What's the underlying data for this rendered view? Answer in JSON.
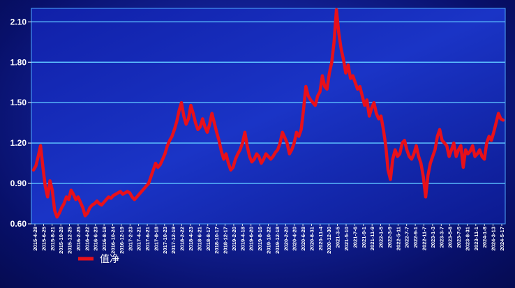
{
  "chart_data": {
    "type": "line",
    "title": "",
    "xlabel": "",
    "ylabel": "",
    "ylim": [
      0.6,
      2.2
    ],
    "yticks": [
      "0.60",
      "0.90",
      "1.20",
      "1.50",
      "1.80",
      "2.10"
    ],
    "grid": true,
    "legend_position": "bottom-left",
    "x_tick_labels": [
      "2015-4-28",
      "2015-6-25",
      "2015-8-21",
      "2015-10-28",
      "2015-12-25",
      "2016-2-25",
      "2016-4-22",
      "2016-6-23",
      "2016-8-18",
      "2016-10-24",
      "2016-12-19",
      "2017-2-23",
      "2017-4-21",
      "2017-6-21",
      "2017-8-18",
      "2017-10-23",
      "2017-12-19",
      "2018-2-22",
      "2018-4-23",
      "2018-6-21",
      "2018-8-17",
      "2018-10-17",
      "2018-12-17",
      "2019-2-20",
      "2019-4-18",
      "2019-6-20",
      "2019-8-16",
      "2019-10-22",
      "2019-12-18",
      "2020-2-20",
      "2020-4-20",
      "2020-6-28",
      "2020-8-31",
      "2020-11-4",
      "2020-12-30",
      "2021-3-5",
      "2021-5-10",
      "2021-7-6",
      "2021-9-1",
      "2021-11-9",
      "2022-1-5",
      "2022-3-9",
      "2022-5-11",
      "2022-7-7",
      "2022-9-1",
      "2022-11-7",
      "2023-1-3",
      "2023-3-7",
      "2023-5-8",
      "2023-7-5",
      "2023-8-31",
      "2023-11-1",
      "2024-1-8",
      "2024-3-13",
      "2024-5-17"
    ],
    "series": [
      {
        "name": "值净",
        "color": "#e8101a",
        "values": [
          1.0,
          1.03,
          1.1,
          1.18,
          1.02,
          0.88,
          0.8,
          0.92,
          0.85,
          0.7,
          0.65,
          0.68,
          0.72,
          0.75,
          0.8,
          0.78,
          0.85,
          0.82,
          0.78,
          0.8,
          0.76,
          0.72,
          0.66,
          0.68,
          0.72,
          0.74,
          0.75,
          0.77,
          0.75,
          0.74,
          0.76,
          0.78,
          0.8,
          0.79,
          0.81,
          0.82,
          0.83,
          0.84,
          0.82,
          0.83,
          0.84,
          0.83,
          0.8,
          0.78,
          0.8,
          0.82,
          0.84,
          0.86,
          0.88,
          0.9,
          0.95,
          1.0,
          1.05,
          1.02,
          1.04,
          1.08,
          1.12,
          1.18,
          1.22,
          1.25,
          1.3,
          1.36,
          1.44,
          1.5,
          1.4,
          1.34,
          1.38,
          1.48,
          1.42,
          1.35,
          1.3,
          1.32,
          1.38,
          1.32,
          1.28,
          1.34,
          1.42,
          1.35,
          1.28,
          1.22,
          1.14,
          1.08,
          1.12,
          1.05,
          1.0,
          1.02,
          1.08,
          1.12,
          1.15,
          1.2,
          1.28,
          1.18,
          1.1,
          1.06,
          1.08,
          1.12,
          1.1,
          1.05,
          1.08,
          1.12,
          1.1,
          1.08,
          1.1,
          1.13,
          1.15,
          1.2,
          1.28,
          1.24,
          1.2,
          1.12,
          1.15,
          1.2,
          1.28,
          1.25,
          1.3,
          1.45,
          1.62,
          1.55,
          1.52,
          1.5,
          1.48,
          1.55,
          1.58,
          1.7,
          1.62,
          1.6,
          1.72,
          1.8,
          1.95,
          2.19,
          2.02,
          1.9,
          1.82,
          1.72,
          1.78,
          1.68,
          1.7,
          1.65,
          1.6,
          1.62,
          1.55,
          1.48,
          1.52,
          1.4,
          1.46,
          1.5,
          1.42,
          1.38,
          1.4,
          1.3,
          1.18,
          1.0,
          0.93,
          1.08,
          1.15,
          1.1,
          1.12,
          1.2,
          1.22,
          1.15,
          1.1,
          1.08,
          1.12,
          1.18,
          1.1,
          1.05,
          0.95,
          0.8,
          0.96,
          1.05,
          1.1,
          1.15,
          1.25,
          1.3,
          1.22,
          1.2,
          1.18,
          1.1,
          1.15,
          1.2,
          1.1,
          1.15,
          1.18,
          1.02,
          1.15,
          1.12,
          1.14,
          1.18,
          1.1,
          1.12,
          1.15,
          1.1,
          1.08,
          1.2,
          1.25,
          1.22,
          1.28,
          1.35,
          1.42,
          1.38,
          1.37
        ]
      }
    ]
  }
}
